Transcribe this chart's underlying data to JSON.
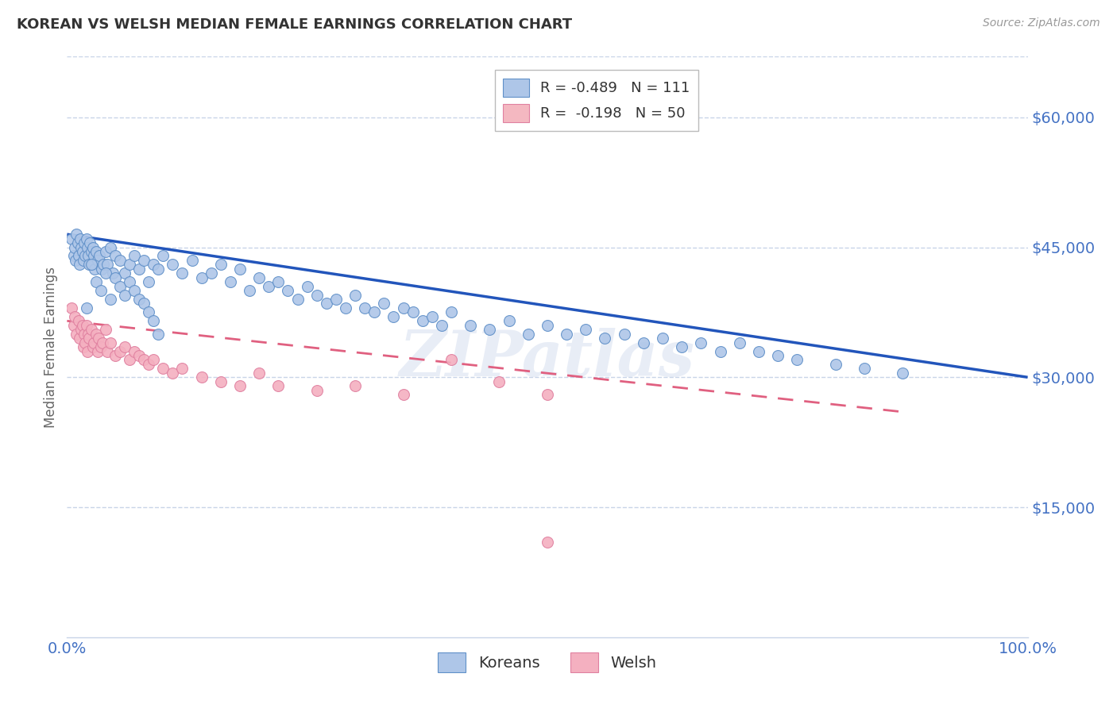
{
  "title": "KOREAN VS WELSH MEDIAN FEMALE EARNINGS CORRELATION CHART",
  "source": "Source: ZipAtlas.com",
  "ylabel": "Median Female Earnings",
  "y_tick_labels": [
    "$15,000",
    "$30,000",
    "$45,000",
    "$60,000"
  ],
  "y_tick_values": [
    15000,
    30000,
    45000,
    60000
  ],
  "ylim": [
    0,
    67000
  ],
  "xlim": [
    0.0,
    1.0
  ],
  "legend_entries": [
    {
      "label": "R = -0.489   N = 111",
      "color": "#aec6e8"
    },
    {
      "label": "R =  -0.198   N = 50",
      "color": "#f4b8c1"
    }
  ],
  "legend_bottom": [
    "Koreans",
    "Welsh"
  ],
  "watermark": "ZIPatlas",
  "title_color": "#333333",
  "source_color": "#999999",
  "axis_label_color": "#4472c4",
  "grid_color": "#c8d4e8",
  "blue_line_color": "#2255bb",
  "pink_line_color": "#e06080",
  "blue_dot_color": "#aec6e8",
  "pink_dot_color": "#f4b0c0",
  "blue_dot_edge": "#6090c8",
  "pink_dot_edge": "#e080a0",
  "korean_x": [
    0.005,
    0.007,
    0.008,
    0.009,
    0.01,
    0.011,
    0.012,
    0.013,
    0.014,
    0.015,
    0.016,
    0.017,
    0.018,
    0.019,
    0.02,
    0.021,
    0.022,
    0.023,
    0.024,
    0.025,
    0.026,
    0.027,
    0.028,
    0.029,
    0.03,
    0.032,
    0.034,
    0.036,
    0.038,
    0.04,
    0.042,
    0.045,
    0.048,
    0.05,
    0.055,
    0.06,
    0.065,
    0.07,
    0.075,
    0.08,
    0.085,
    0.09,
    0.095,
    0.1,
    0.11,
    0.12,
    0.13,
    0.14,
    0.15,
    0.16,
    0.17,
    0.18,
    0.19,
    0.2,
    0.21,
    0.22,
    0.23,
    0.24,
    0.25,
    0.26,
    0.27,
    0.28,
    0.29,
    0.3,
    0.31,
    0.32,
    0.33,
    0.34,
    0.35,
    0.36,
    0.37,
    0.38,
    0.39,
    0.4,
    0.42,
    0.44,
    0.46,
    0.48,
    0.5,
    0.52,
    0.54,
    0.56,
    0.58,
    0.6,
    0.62,
    0.64,
    0.66,
    0.68,
    0.7,
    0.72,
    0.74,
    0.76,
    0.8,
    0.83,
    0.87,
    0.02,
    0.025,
    0.03,
    0.035,
    0.04,
    0.045,
    0.05,
    0.055,
    0.06,
    0.065,
    0.07,
    0.075,
    0.08,
    0.085,
    0.09,
    0.095
  ],
  "korean_y": [
    46000,
    44000,
    45000,
    43500,
    46500,
    45500,
    44000,
    43000,
    46000,
    45000,
    44500,
    43500,
    45500,
    44000,
    46000,
    45000,
    44000,
    43000,
    45500,
    44500,
    43000,
    45000,
    44000,
    42500,
    44500,
    43500,
    44000,
    42500,
    43000,
    44500,
    43000,
    45000,
    42000,
    44000,
    43500,
    42000,
    43000,
    44000,
    42500,
    43500,
    41000,
    43000,
    42500,
    44000,
    43000,
    42000,
    43500,
    41500,
    42000,
    43000,
    41000,
    42500,
    40000,
    41500,
    40500,
    41000,
    40000,
    39000,
    40500,
    39500,
    38500,
    39000,
    38000,
    39500,
    38000,
    37500,
    38500,
    37000,
    38000,
    37500,
    36500,
    37000,
    36000,
    37500,
    36000,
    35500,
    36500,
    35000,
    36000,
    35000,
    35500,
    34500,
    35000,
    34000,
    34500,
    33500,
    34000,
    33000,
    34000,
    33000,
    32500,
    32000,
    31500,
    31000,
    30500,
    38000,
    43000,
    41000,
    40000,
    42000,
    39000,
    41500,
    40500,
    39500,
    41000,
    40000,
    39000,
    38500,
    37500,
    36500,
    35000
  ],
  "welsh_x": [
    0.005,
    0.007,
    0.008,
    0.01,
    0.012,
    0.013,
    0.015,
    0.016,
    0.017,
    0.018,
    0.019,
    0.02,
    0.021,
    0.022,
    0.023,
    0.025,
    0.027,
    0.028,
    0.03,
    0.032,
    0.033,
    0.035,
    0.037,
    0.04,
    0.042,
    0.045,
    0.05,
    0.055,
    0.06,
    0.065,
    0.07,
    0.075,
    0.08,
    0.085,
    0.09,
    0.1,
    0.11,
    0.12,
    0.14,
    0.16,
    0.18,
    0.2,
    0.22,
    0.26,
    0.3,
    0.35,
    0.4,
    0.45,
    0.5,
    0.5
  ],
  "welsh_y": [
    38000,
    36000,
    37000,
    35000,
    36500,
    34500,
    35500,
    36000,
    33500,
    35000,
    34000,
    36000,
    33000,
    35000,
    34500,
    35500,
    33500,
    34000,
    35000,
    33000,
    34500,
    33500,
    34000,
    35500,
    33000,
    34000,
    32500,
    33000,
    33500,
    32000,
    33000,
    32500,
    32000,
    31500,
    32000,
    31000,
    30500,
    31000,
    30000,
    29500,
    29000,
    30500,
    29000,
    28500,
    29000,
    28000,
    32000,
    29500,
    28000,
    11000
  ],
  "blue_line_x": [
    0.0,
    1.0
  ],
  "blue_line_y": [
    46500,
    30000
  ],
  "pink_line_x": [
    0.0,
    0.87
  ],
  "pink_line_y": [
    36500,
    26000
  ]
}
